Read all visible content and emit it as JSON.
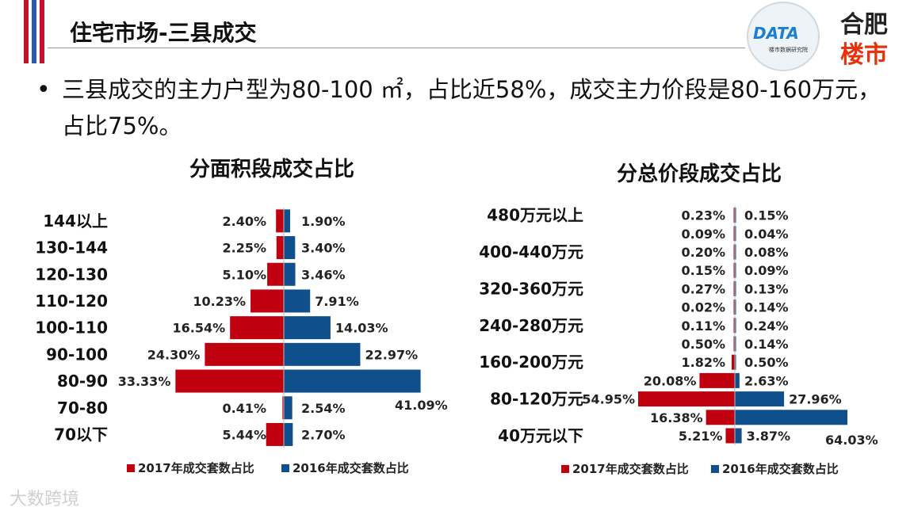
{
  "header": {
    "title": "住宅市场-三县成交"
  },
  "logos": {
    "data_logo": "DATA",
    "data_logo_sub": "楼市数据研究院",
    "site_logo_line1": "合肥",
    "site_logo_line2": "楼市"
  },
  "summary": {
    "bullet": "•",
    "text": "三县成交的主力户型为80-100 ㎡，占比近58%，成交主力价段是80-160万元，占比75%。"
  },
  "watermark": "大数跨境",
  "colors": {
    "red": "#c0000f",
    "blue": "#0e4f8c",
    "stripe_red": "#c3112b",
    "stripe_blue": "#2d5aa0"
  },
  "chart_data": [
    {
      "type": "bar",
      "title": "分面积段成交占比",
      "categories": [
        "144以上",
        "130-144",
        "120-130",
        "110-120",
        "100-110",
        "90-100",
        "80-90",
        "70-80",
        "70以下"
      ],
      "series": [
        {
          "name": "2017年成交套数占比",
          "values": [
            2.4,
            2.25,
            5.1,
            10.23,
            16.54,
            24.3,
            33.33,
            0.41,
            5.44
          ],
          "labels": [
            "2.40%",
            "2.25%",
            "5.10%",
            "10.23%",
            "16.54%",
            "24.30%",
            "33.33%",
            "0.41%",
            "5.44%"
          ]
        },
        {
          "name": "2016年成交套数占比",
          "values": [
            1.9,
            3.4,
            3.46,
            7.91,
            14.03,
            22.97,
            41.09,
            2.54,
            2.7
          ],
          "labels": [
            "1.90%",
            "3.40%",
            "3.46%",
            "7.91%",
            "14.03%",
            "22.97%",
            "41.09%",
            "2.54%",
            "2.70%"
          ]
        }
      ],
      "legend": "bottom"
    },
    {
      "type": "bar",
      "title": "分总价段成交占比",
      "categories": [
        "480万元以上",
        "",
        "400-440万元",
        "",
        "320-360万元",
        "",
        "240-280万元",
        "",
        "160-200万元",
        "",
        "80-120万元",
        "",
        "40万元以下"
      ],
      "series": [
        {
          "name": "2017年成交套数占比",
          "values": [
            0.23,
            0.09,
            0.2,
            0.15,
            0.27,
            0.02,
            0.11,
            0.5,
            1.82,
            20.08,
            54.95,
            16.38,
            5.21
          ],
          "labels": [
            "0.23%",
            "0.09%",
            "0.20%",
            "0.15%",
            "0.27%",
            "0.02%",
            "0.11%",
            "0.50%",
            "1.82%",
            "20.08%",
            "54.95%",
            "16.38%",
            "5.21%"
          ]
        },
        {
          "name": "2016年成交套数占比",
          "values": [
            0.15,
            0.04,
            0.08,
            0.09,
            0.13,
            0.14,
            0.24,
            0.14,
            0.5,
            2.63,
            27.96,
            64.03,
            3.87
          ],
          "labels": [
            "0.15%",
            "0.04%",
            "0.08%",
            "0.09%",
            "0.13%",
            "0.14%",
            "0.24%",
            "0.14%",
            "0.50%",
            "2.63%",
            "27.96%",
            "64.03%",
            "3.87%"
          ]
        }
      ],
      "legend": "bottom"
    }
  ]
}
